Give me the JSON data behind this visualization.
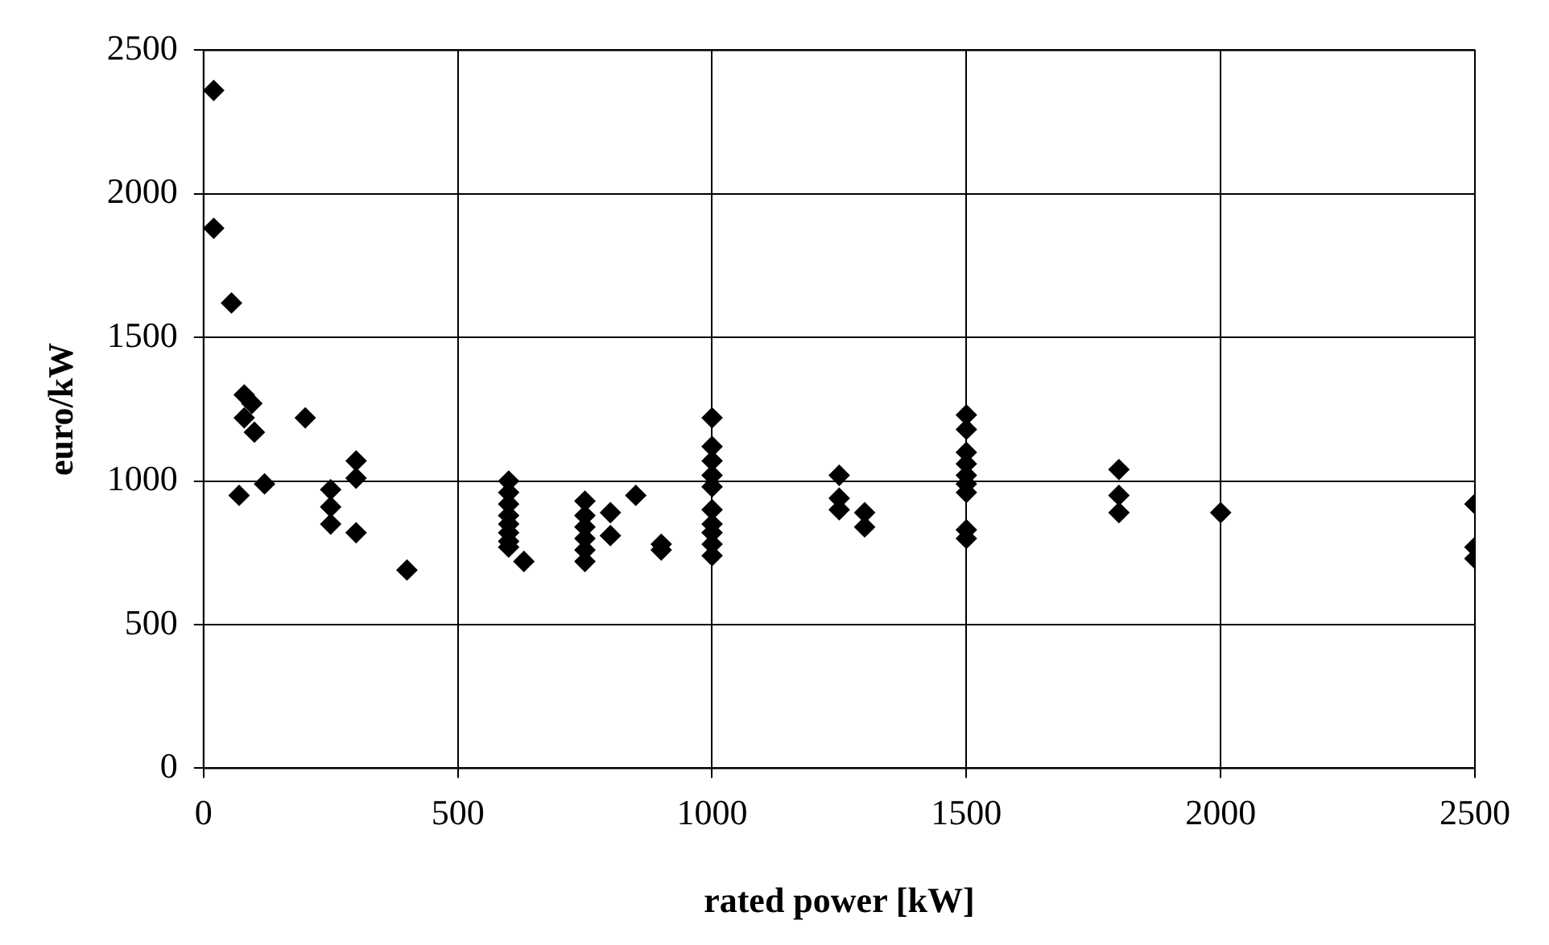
{
  "chart_data": {
    "type": "scatter",
    "xlabel": "rated power [kW]",
    "ylabel": "euro/kW",
    "series": [
      {
        "color": "#000000",
        "x": [
          20,
          20,
          55,
          80,
          80,
          95,
          100,
          70,
          120,
          200,
          250,
          250,
          250,
          300,
          300,
          300,
          400,
          600,
          600,
          600,
          600,
          600,
          600,
          600,
          600,
          630,
          750,
          750,
          750,
          750,
          750,
          750,
          800,
          800,
          850,
          900,
          900,
          1000,
          1000,
          1000,
          1000,
          1000,
          1000,
          1000,
          1000,
          1000,
          1000,
          1250,
          1250,
          1250,
          1300,
          1300,
          1500,
          1500,
          1500,
          1500,
          1500,
          1500,
          1500,
          1500,
          1500,
          1800,
          1800,
          1800,
          2000,
          2500,
          2500,
          2500
        ],
        "values": [
          2360,
          1880,
          1620,
          1300,
          1220,
          1270,
          1170,
          950,
          990,
          1220,
          970,
          910,
          850,
          1070,
          1010,
          820,
          690,
          1000,
          960,
          920,
          880,
          850,
          820,
          790,
          770,
          720,
          930,
          880,
          840,
          800,
          760,
          720,
          890,
          810,
          950,
          780,
          760,
          1220,
          1120,
          1070,
          1020,
          980,
          900,
          850,
          820,
          780,
          740,
          1020,
          940,
          900,
          890,
          840,
          1230,
          1180,
          1100,
          1060,
          1020,
          990,
          960,
          830,
          800,
          1040,
          950,
          890,
          890,
          920,
          770,
          730
        ]
      }
    ],
    "xlim": [
      0,
      2500
    ],
    "xticks": [
      0,
      500,
      1000,
      1500,
      2000,
      2500
    ],
    "ylim": [
      0,
      2500
    ],
    "yticks": [
      0,
      500,
      1000,
      1500,
      2000,
      2500
    ],
    "grid": true,
    "legend": false,
    "marker": "diamond"
  }
}
